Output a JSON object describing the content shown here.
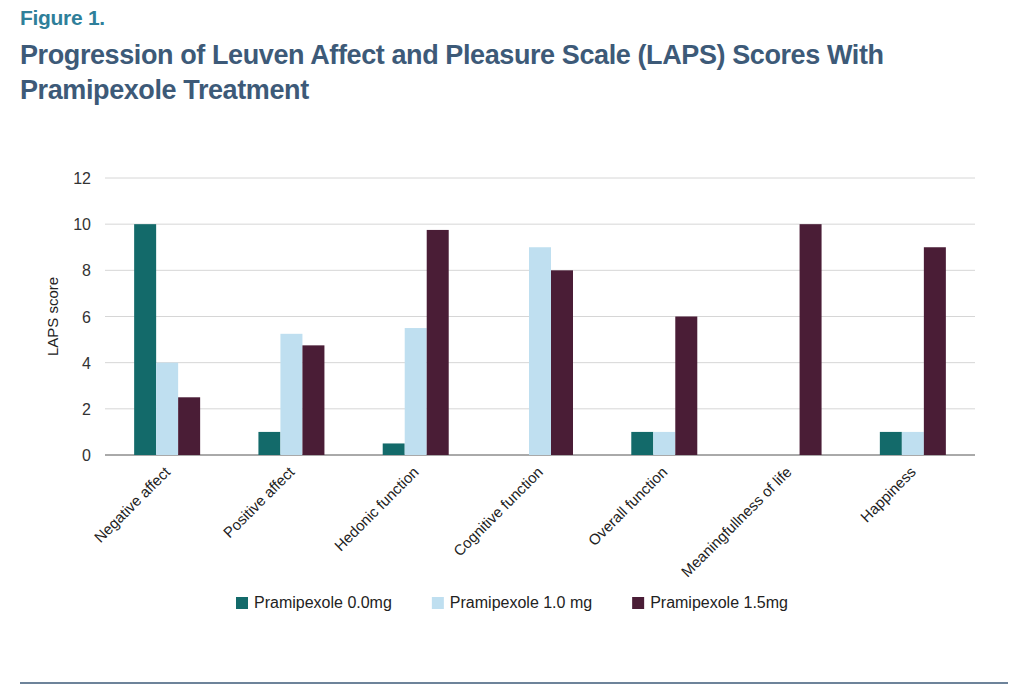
{
  "chart_data": {
    "type": "bar",
    "subtitle": "Figure 1.",
    "title": "Progression of Leuven Affect and Pleasure Scale (LAPS) Scores With Pramipexole Treatment",
    "y_label": "LAPS score",
    "categories": [
      "Negative affect",
      "Positive affect",
      "Hedonic function",
      "Cognitive function",
      "Overall function",
      "Meaningfullness of life",
      "Happiness"
    ],
    "series": [
      {
        "name": "Pramipexole 0.0mg",
        "color": "#136a6a",
        "values": [
          10,
          1,
          0.5,
          0,
          1,
          0,
          1
        ]
      },
      {
        "name": "Pramipexole 1.0 mg",
        "color": "#bfdff0",
        "values": [
          4,
          5.25,
          5.5,
          9,
          1,
          0,
          1
        ]
      },
      {
        "name": "Pramipexole 1.5mg",
        "color": "#4a1d36",
        "values": [
          2.5,
          4.75,
          9.75,
          8,
          6,
          10,
          9
        ]
      }
    ],
    "ylim": [
      0,
      12
    ],
    "yticks": [
      0,
      2,
      4,
      6,
      8,
      10,
      12
    ],
    "grid": true,
    "legend": "bottom"
  }
}
